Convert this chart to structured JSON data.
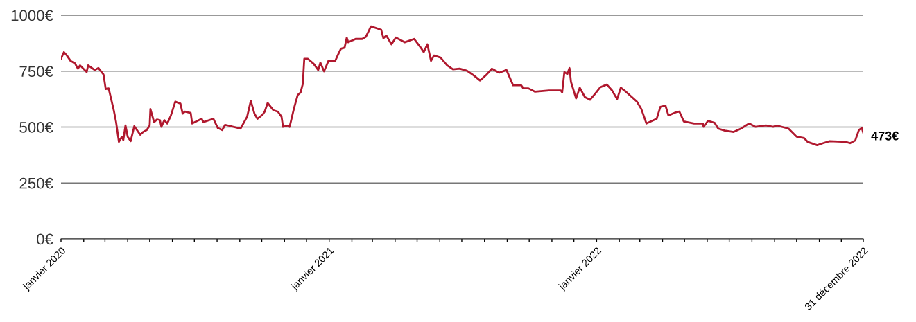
{
  "chart_data": {
    "type": "line",
    "x": [
      "2020-01-01",
      "2020-01-05",
      "2020-01-09",
      "2020-01-14",
      "2020-01-20",
      "2020-01-24",
      "2020-01-27",
      "2020-02-05",
      "2020-02-07",
      "2020-02-16",
      "2020-02-21",
      "2020-02-28",
      "2020-03-02",
      "2020-03-06",
      "2020-03-13",
      "2020-03-16",
      "2020-03-20",
      "2020-03-24",
      "2020-03-26",
      "2020-03-29",
      "2020-04-01",
      "2020-04-05",
      "2020-04-10",
      "2020-04-18",
      "2020-04-22",
      "2020-04-27",
      "2020-05-01",
      "2020-05-02",
      "2020-05-07",
      "2020-05-11",
      "2020-05-15",
      "2020-05-17",
      "2020-05-21",
      "2020-05-25",
      "2020-05-30",
      "2020-06-05",
      "2020-06-12",
      "2020-06-15",
      "2020-06-18",
      "2020-06-26",
      "2020-06-28",
      "2020-07-11",
      "2020-07-13",
      "2020-07-27",
      "2020-08-02",
      "2020-08-08",
      "2020-08-12",
      "2020-08-30",
      "2020-09-02",
      "2020-09-11",
      "2020-09-16",
      "2020-09-21",
      "2020-09-25",
      "2020-10-02",
      "2020-10-05",
      "2020-10-09",
      "2020-10-17",
      "2020-10-23",
      "2020-10-28",
      "2020-10-30",
      "2020-11-06",
      "2020-11-08",
      "2020-11-14",
      "2020-11-19",
      "2020-11-23",
      "2020-11-26",
      "2020-11-28",
      "2020-12-03",
      "2020-12-11",
      "2020-12-17",
      "2020-12-20",
      "2020-12-25",
      "2020-12-31",
      "2021-01-09",
      "2021-01-13",
      "2021-01-17",
      "2021-01-22",
      "2021-01-25",
      "2021-01-27",
      "2021-02-06",
      "2021-02-15",
      "2021-02-20",
      "2021-02-27",
      "2021-03-13",
      "2021-03-16",
      "2021-03-20",
      "2021-03-27",
      "2021-04-02",
      "2021-04-14",
      "2021-04-27",
      "2021-05-06",
      "2021-05-10",
      "2021-05-15",
      "2021-05-20",
      "2021-05-24",
      "2021-06-02",
      "2021-06-11",
      "2021-06-19",
      "2021-06-28",
      "2021-07-08",
      "2021-07-17",
      "2021-07-26",
      "2021-08-03",
      "2021-08-11",
      "2021-08-21",
      "2021-08-31",
      "2021-09-09",
      "2021-09-20",
      "2021-09-23",
      "2021-09-30",
      "2021-10-09",
      "2021-10-28",
      "2021-11-13",
      "2021-11-15",
      "2021-11-18",
      "2021-11-22",
      "2021-11-25",
      "2021-11-27",
      "2021-12-04",
      "2021-12-09",
      "2021-12-16",
      "2021-12-23",
      "2021-12-30",
      "2022-01-06",
      "2022-01-15",
      "2022-01-22",
      "2022-01-29",
      "2022-02-03",
      "2022-02-10",
      "2022-02-25",
      "2022-03-03",
      "2022-03-10",
      "2022-03-24",
      "2022-03-29",
      "2022-04-05",
      "2022-04-09",
      "2022-04-19",
      "2022-04-24",
      "2022-04-30",
      "2022-05-14",
      "2022-05-26",
      "2022-05-27",
      "2022-06-02",
      "2022-06-11",
      "2022-06-16",
      "2022-06-25",
      "2022-07-07",
      "2022-07-17",
      "2022-07-28",
      "2022-08-06",
      "2022-08-20",
      "2022-08-30",
      "2022-09-04",
      "2022-09-20",
      "2022-10-01",
      "2022-10-11",
      "2022-10-16",
      "2022-10-29",
      "2022-11-06",
      "2022-11-15",
      "2022-12-07",
      "2022-12-13",
      "2022-12-20",
      "2022-12-25",
      "2022-12-29",
      "2022-12-31"
    ],
    "series": [
      {
        "color": "#b0182e",
        "values": [
          805,
          835,
          820,
          796,
          785,
          761,
          776,
          746,
          776,
          755,
          764,
          735,
          670,
          673,
          575,
          525,
          434,
          457,
          442,
          507,
          457,
          437,
          504,
          466,
          478,
          487,
          507,
          581,
          522,
          534,
          531,
          501,
          531,
          516,
          552,
          614,
          605,
          560,
          569,
          563,
          516,
          537,
          522,
          537,
          496,
          487,
          510,
          496,
          493,
          546,
          617,
          560,
          537,
          555,
          569,
          608,
          575,
          569,
          546,
          501,
          507,
          501,
          584,
          643,
          655,
          693,
          805,
          805,
          782,
          755,
          788,
          749,
          796,
          794,
          823,
          850,
          855,
          900,
          879,
          894,
          894,
          903,
          950,
          935,
          897,
          909,
          870,
          900,
          879,
          894,
          855,
          835,
          870,
          796,
          820,
          811,
          776,
          758,
          761,
          752,
          732,
          708,
          732,
          761,
          743,
          755,
          687,
          687,
          673,
          673,
          658,
          664,
          664,
          655,
          746,
          737,
          764,
          702,
          628,
          676,
          634,
          622,
          649,
          678,
          690,
          664,
          625,
          676,
          658,
          614,
          581,
          516,
          537,
          590,
          596,
          552,
          566,
          569,
          525,
          516,
          516,
          501,
          528,
          519,
          493,
          484,
          478,
          493,
          516,
          501,
          507,
          501,
          507,
          493,
          457,
          451,
          434,
          419,
          428,
          437,
          434,
          428,
          440,
          487,
          496,
          473
        ]
      }
    ],
    "xlim": [
      "2020-01-01",
      "2022-12-31"
    ],
    "xticks": [
      {
        "value": "2020-01-01",
        "label": "janvier 2020"
      },
      {
        "value": "2020-02-01",
        "label": null
      },
      {
        "value": "2020-03-01",
        "label": null
      },
      {
        "value": "2020-04-01",
        "label": null
      },
      {
        "value": "2020-05-01",
        "label": null
      },
      {
        "value": "2020-06-01",
        "label": null
      },
      {
        "value": "2020-07-01",
        "label": null
      },
      {
        "value": "2020-08-01",
        "label": null
      },
      {
        "value": "2020-09-01",
        "label": null
      },
      {
        "value": "2020-10-01",
        "label": null
      },
      {
        "value": "2020-11-01",
        "label": null
      },
      {
        "value": "2020-12-01",
        "label": null
      },
      {
        "value": "2021-01-01",
        "label": "janvier 2021"
      },
      {
        "value": "2021-02-01",
        "label": null
      },
      {
        "value": "2021-03-01",
        "label": null
      },
      {
        "value": "2021-04-01",
        "label": null
      },
      {
        "value": "2021-05-01",
        "label": null
      },
      {
        "value": "2021-06-01",
        "label": null
      },
      {
        "value": "2021-07-01",
        "label": null
      },
      {
        "value": "2021-08-01",
        "label": null
      },
      {
        "value": "2021-09-01",
        "label": null
      },
      {
        "value": "2021-10-01",
        "label": null
      },
      {
        "value": "2021-11-01",
        "label": null
      },
      {
        "value": "2021-12-01",
        "label": null
      },
      {
        "value": "2022-01-01",
        "label": "janvier 2022"
      },
      {
        "value": "2022-02-01",
        "label": null
      },
      {
        "value": "2022-03-01",
        "label": null
      },
      {
        "value": "2022-04-01",
        "label": null
      },
      {
        "value": "2022-05-01",
        "label": null
      },
      {
        "value": "2022-06-01",
        "label": null
      },
      {
        "value": "2022-07-01",
        "label": null
      },
      {
        "value": "2022-08-01",
        "label": null
      },
      {
        "value": "2022-09-01",
        "label": null
      },
      {
        "value": "2022-10-01",
        "label": null
      },
      {
        "value": "2022-11-01",
        "label": null
      },
      {
        "value": "2022-12-01",
        "label": null
      },
      {
        "value": "2022-12-31",
        "label": "31 décembre 2022"
      }
    ],
    "ylim": [
      0,
      1000
    ],
    "yticks": [
      {
        "value": 0,
        "label": "0€"
      },
      {
        "value": 250,
        "label": "250€"
      },
      {
        "value": 500,
        "label": "500€"
      },
      {
        "value": 750,
        "label": "750€"
      },
      {
        "value": 1000,
        "label": "1000€"
      }
    ],
    "grid": "y",
    "annotations": [
      {
        "text": "473€",
        "x": "2022-12-31",
        "y": 473
      }
    ]
  }
}
